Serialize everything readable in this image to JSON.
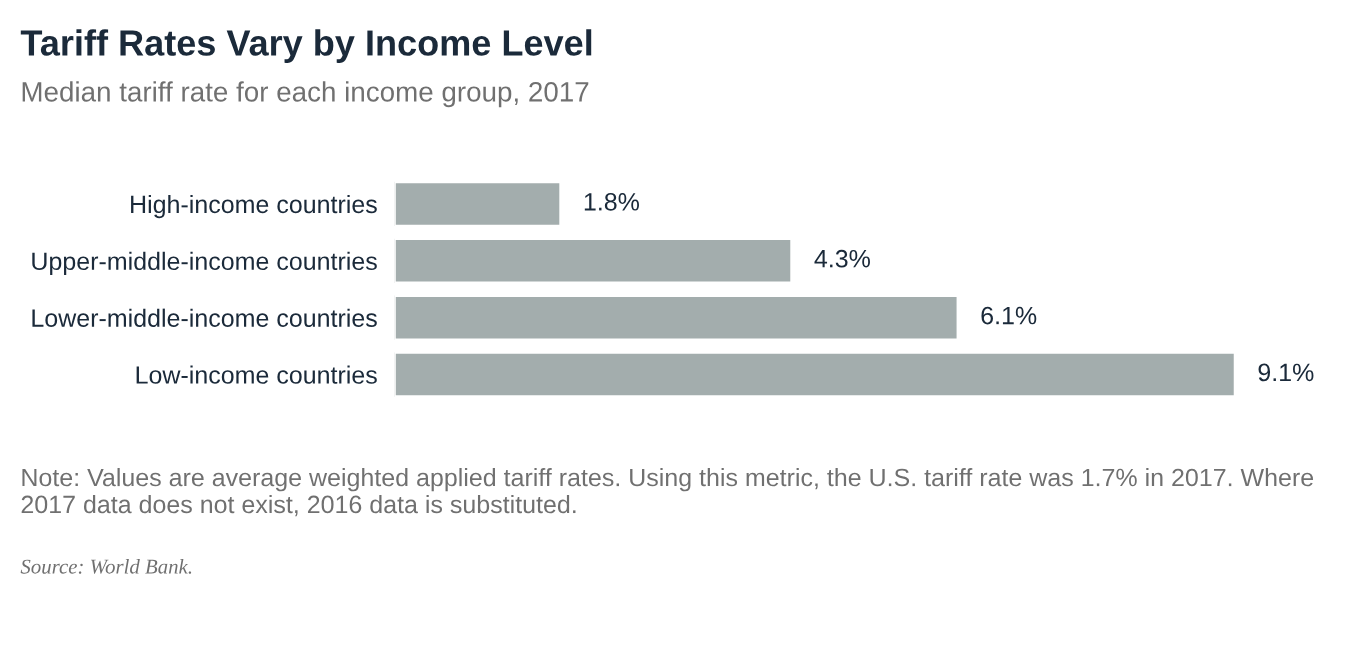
{
  "chart_data": {
    "type": "bar",
    "orientation": "horizontal",
    "title": "Tariff Rates Vary by Income Level",
    "subtitle": "Median tariff rate for each income group, 2017",
    "categories": [
      "High-income countries",
      "Upper-middle-income countries",
      "Lower-middle-income countries",
      "Low-income countries"
    ],
    "values": [
      1.8,
      4.3,
      6.1,
      9.1
    ],
    "value_labels": [
      "1.8%",
      "4.3%",
      "6.1%",
      "9.1%"
    ],
    "color": "#a3adad",
    "annotations": [
      "Note: Values are average weighted applied tariff rates. Using this metric, the U.S. tariff rate was 1.7% in 2017. Where 2017 data does not exist, 2016 data is substituted.",
      "Source: World Bank."
    ]
  }
}
